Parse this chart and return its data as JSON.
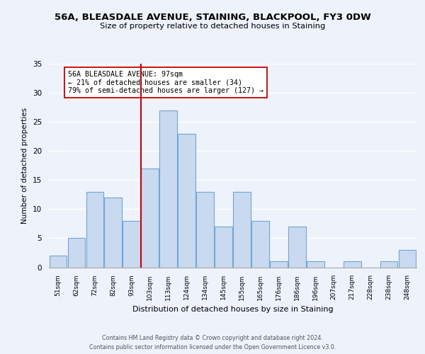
{
  "title": "56A, BLEASDALE AVENUE, STAINING, BLACKPOOL, FY3 0DW",
  "subtitle": "Size of property relative to detached houses in Staining",
  "xlabel": "Distribution of detached houses by size in Staining",
  "ylabel": "Number of detached properties",
  "bin_labels": [
    "51sqm",
    "62sqm",
    "72sqm",
    "82sqm",
    "93sqm",
    "103sqm",
    "113sqm",
    "124sqm",
    "134sqm",
    "145sqm",
    "155sqm",
    "165sqm",
    "176sqm",
    "186sqm",
    "196sqm",
    "207sqm",
    "217sqm",
    "228sqm",
    "238sqm",
    "248sqm"
  ],
  "bar_heights": [
    2,
    5,
    13,
    12,
    8,
    17,
    27,
    23,
    13,
    7,
    13,
    8,
    1,
    7,
    1,
    0,
    1,
    0,
    1,
    3
  ],
  "bar_color": "#c9d9f0",
  "bar_edge_color": "#6fa8d6",
  "vline_x_index": 4.5,
  "vline_color": "#cc0000",
  "annotation_text": "56A BLEASDALE AVENUE: 97sqm\n← 21% of detached houses are smaller (34)\n79% of semi-detached houses are larger (127) →",
  "annotation_box_color": "#ffffff",
  "annotation_box_edgecolor": "#cc0000",
  "ylim": [
    0,
    35
  ],
  "yticks": [
    0,
    5,
    10,
    15,
    20,
    25,
    30,
    35
  ],
  "footer_line1": "Contains HM Land Registry data © Crown copyright and database right 2024.",
  "footer_line2": "Contains public sector information licensed under the Open Government Licence v3.0.",
  "bg_color": "#eef2fa"
}
